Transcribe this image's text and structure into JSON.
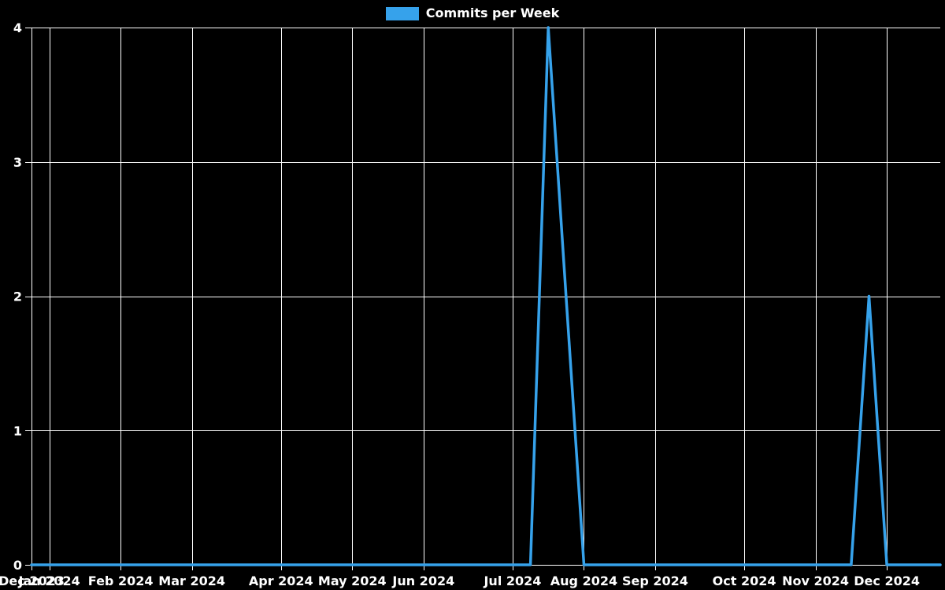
{
  "legend": {
    "label": "Commits per Week"
  },
  "colors": {
    "background": "#000000",
    "grid": "#ffffff",
    "text": "#ffffff",
    "line": "#36a2eb"
  },
  "chart_data": {
    "type": "line",
    "title": "",
    "legend_label": "Commits per Week",
    "legend_position": "top-center",
    "x_unit": "week",
    "grid": true,
    "ylim": [
      0,
      4
    ],
    "y_ticks": [
      0,
      1,
      2,
      3,
      4
    ],
    "x_ticks": [
      {
        "index": 0,
        "label": "Dec 2023"
      },
      {
        "index": 1,
        "label": "Jan 2024"
      },
      {
        "index": 5,
        "label": "Feb 2024"
      },
      {
        "index": 9,
        "label": "Mar 2024"
      },
      {
        "index": 14,
        "label": "Apr 2024"
      },
      {
        "index": 18,
        "label": "May 2024"
      },
      {
        "index": 22,
        "label": "Jun 2024"
      },
      {
        "index": 27,
        "label": "Jul 2024"
      },
      {
        "index": 31,
        "label": "Aug 2024"
      },
      {
        "index": 35,
        "label": "Sep 2024"
      },
      {
        "index": 40,
        "label": "Oct 2024"
      },
      {
        "index": 44,
        "label": "Nov 2024"
      },
      {
        "index": 48,
        "label": "Dec 2024"
      }
    ],
    "series": [
      {
        "name": "Commits per Week",
        "values": [
          0,
          0,
          0,
          0,
          0,
          0,
          0,
          0,
          0,
          0,
          0,
          0,
          0,
          0,
          0,
          0,
          0,
          0,
          0,
          0,
          0,
          0,
          0,
          0,
          0,
          0,
          0,
          0,
          0,
          4,
          2,
          0,
          0,
          0,
          0,
          0,
          0,
          0,
          0,
          0,
          0,
          0,
          0,
          0,
          0,
          0,
          0,
          2,
          0,
          0,
          0,
          0
        ]
      }
    ]
  }
}
